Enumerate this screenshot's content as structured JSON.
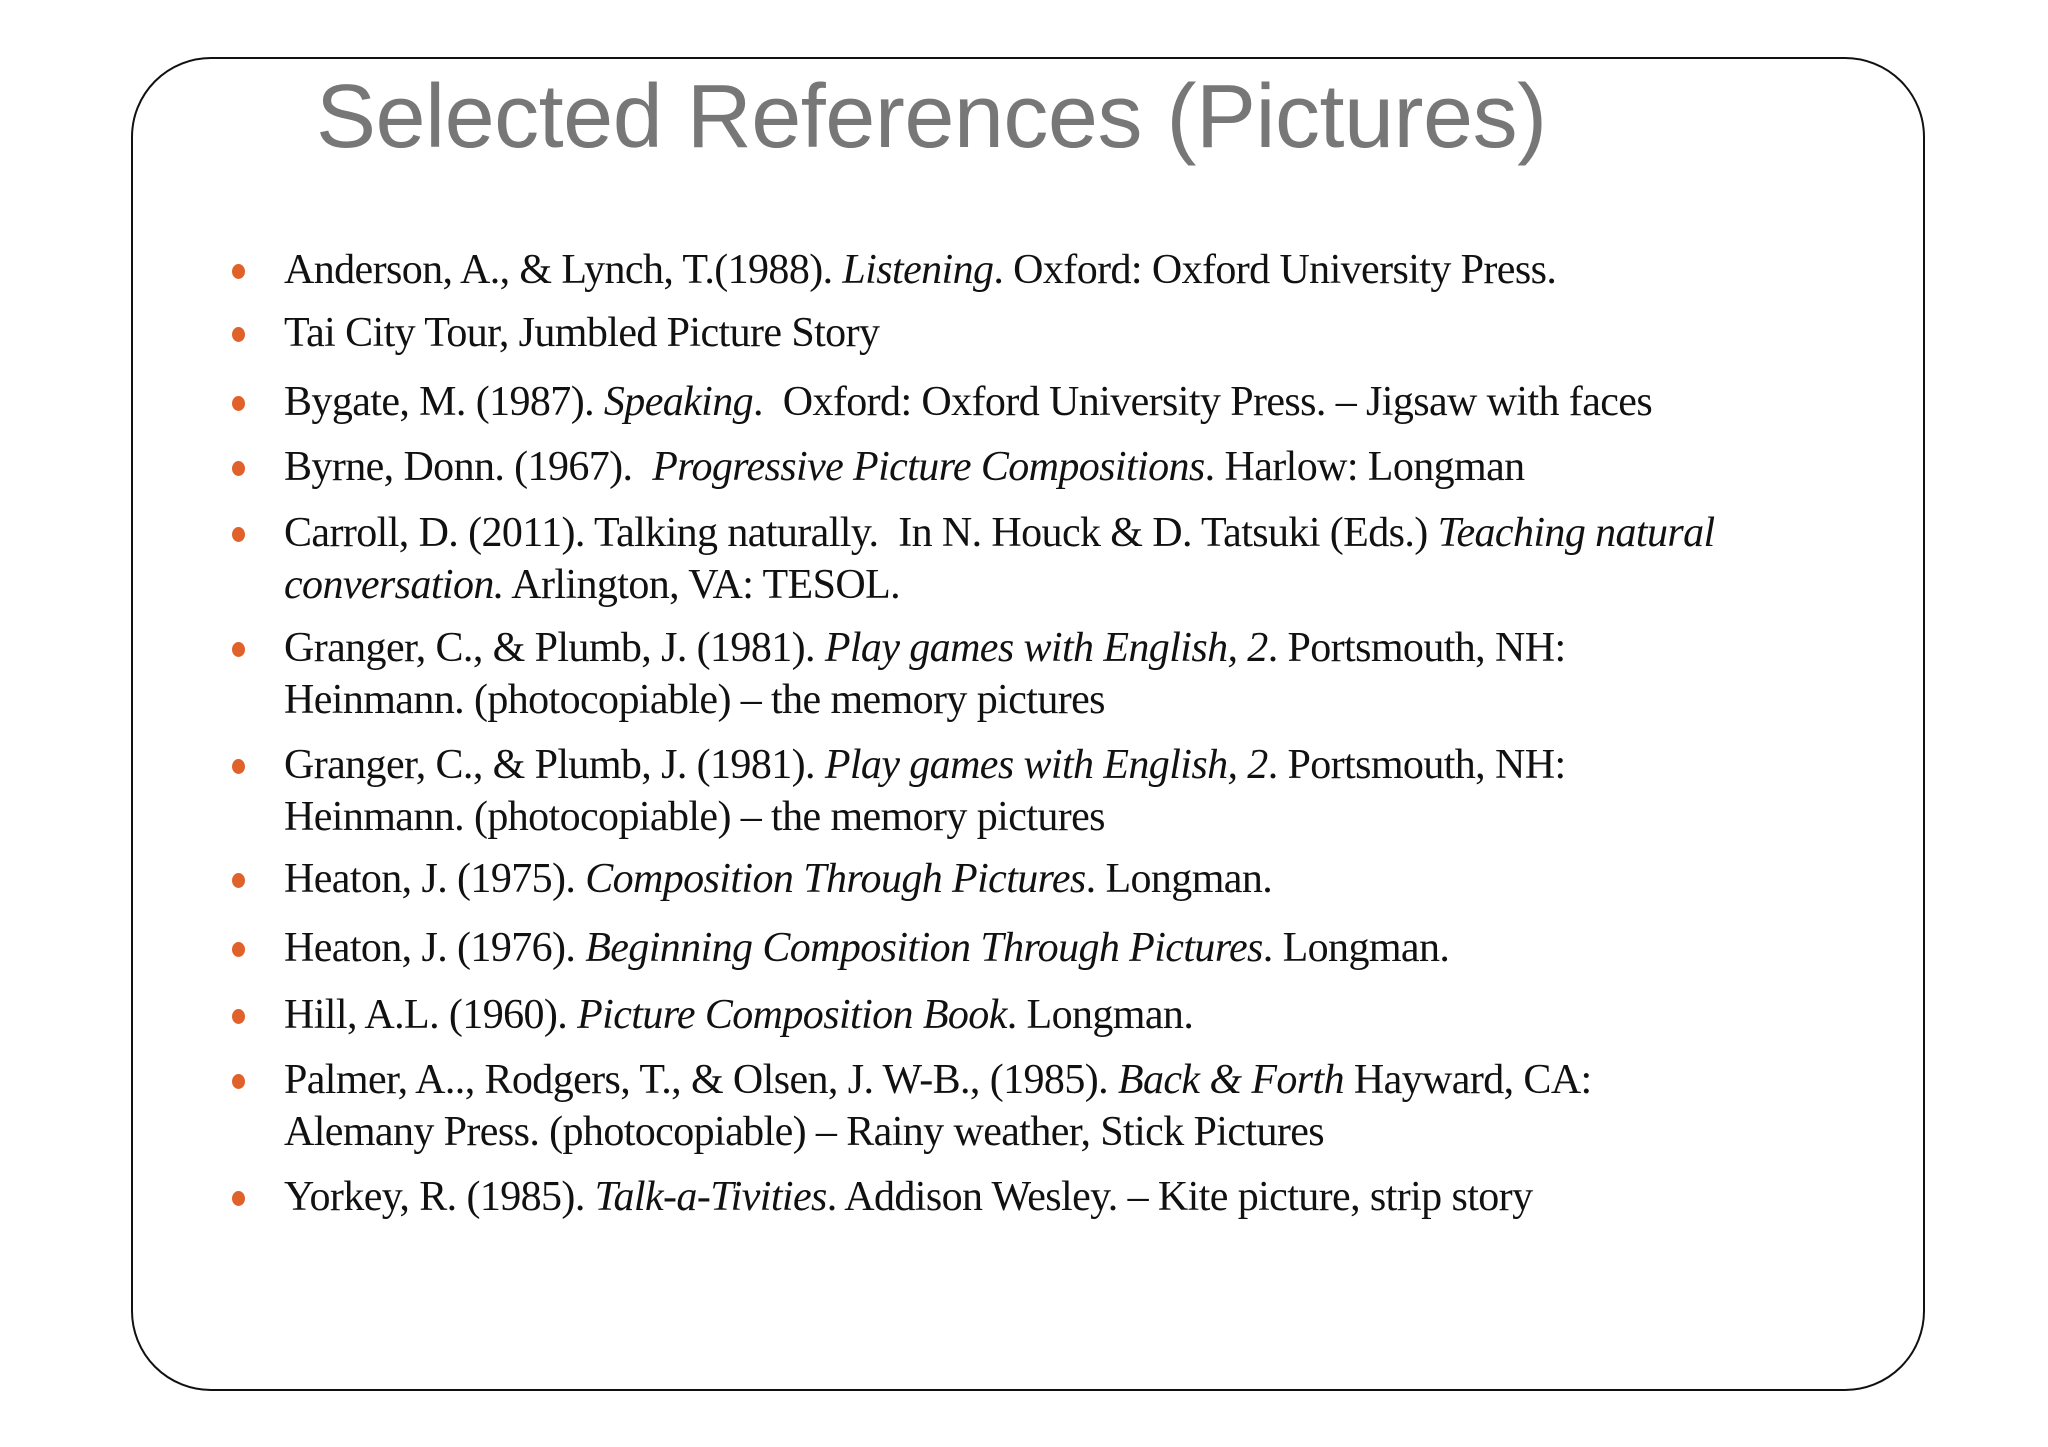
{
  "title": "Selected References (Pictures)",
  "colors": {
    "bullet": "#E0622A",
    "title": "#777777",
    "border": "#111111"
  },
  "references": [
    {
      "lines": [
        [
          {
            "t": "Anderson, A., & Lynch, T.(1988). "
          },
          {
            "t": "Listening",
            "i": true
          },
          {
            "t": ". Oxford: Oxford University Press."
          }
        ]
      ]
    },
    {
      "lines": [
        [
          {
            "t": "Tai City Tour, Jumbled Picture Story"
          }
        ]
      ]
    },
    {
      "lines": [
        [
          {
            "t": "Bygate, M. (1987). "
          },
          {
            "t": "Speaking",
            "i": true
          },
          {
            "t": ".  Oxford: Oxford University Press. – Jigsaw with faces"
          }
        ]
      ]
    },
    {
      "lines": [
        [
          {
            "t": "Byrne, Donn. (1967).  "
          },
          {
            "t": "Progressive Picture Compositions",
            "i": true
          },
          {
            "t": ". Harlow: Longman"
          }
        ]
      ]
    },
    {
      "lines": [
        [
          {
            "t": "Carroll, D. (2011). Talking naturally.  In N. Houck & D. Tatsuki (Eds.) "
          },
          {
            "t": "Teaching natural",
            "i": true
          }
        ],
        [
          {
            "t": "conversation.",
            "i": true
          },
          {
            "t": " Arlington, VA: TESOL."
          }
        ]
      ]
    },
    {
      "lines": [
        [
          {
            "t": "Granger, C., & Plumb, J. (1981). "
          },
          {
            "t": "Play games with English, 2",
            "i": true
          },
          {
            "t": ". Portsmouth, NH:"
          }
        ],
        [
          {
            "t": "Heinmann. (photocopiable) – the memory pictures"
          }
        ]
      ]
    },
    {
      "lines": [
        [
          {
            "t": "Granger, C., & Plumb, J. (1981). "
          },
          {
            "t": "Play games with English, 2",
            "i": true
          },
          {
            "t": ". Portsmouth, NH:"
          }
        ],
        [
          {
            "t": "Heinmann. (photocopiable) – the memory pictures"
          }
        ]
      ]
    },
    {
      "lines": [
        [
          {
            "t": "Heaton, J. (1975). "
          },
          {
            "t": "Composition Through Pictures",
            "i": true
          },
          {
            "t": ". Longman."
          }
        ]
      ]
    },
    {
      "lines": [
        [
          {
            "t": "Heaton, J. (1976). "
          },
          {
            "t": "Beginning Composition Through Pictures",
            "i": true
          },
          {
            "t": ". Longman."
          }
        ]
      ]
    },
    {
      "lines": [
        [
          {
            "t": "Hill, A.L. (1960). "
          },
          {
            "t": "Picture Composition Book",
            "i": true
          },
          {
            "t": ". Longman."
          }
        ]
      ]
    },
    {
      "lines": [
        [
          {
            "t": "Palmer, A.., Rodgers, T., & Olsen, J. W-B., (1985). "
          },
          {
            "t": "Back & Forth",
            "i": true
          },
          {
            "t": " Hayward, CA:"
          }
        ],
        [
          {
            "t": "Alemany Press. (photocopiable) – Rainy weather, Stick Pictures"
          }
        ]
      ]
    },
    {
      "lines": [
        [
          {
            "t": "Yorkey, R. (1985). "
          },
          {
            "t": "Talk-a-Tivities",
            "i": true
          },
          {
            "t": ". Addison Wesley. – Kite picture, strip story"
          }
        ]
      ]
    }
  ]
}
